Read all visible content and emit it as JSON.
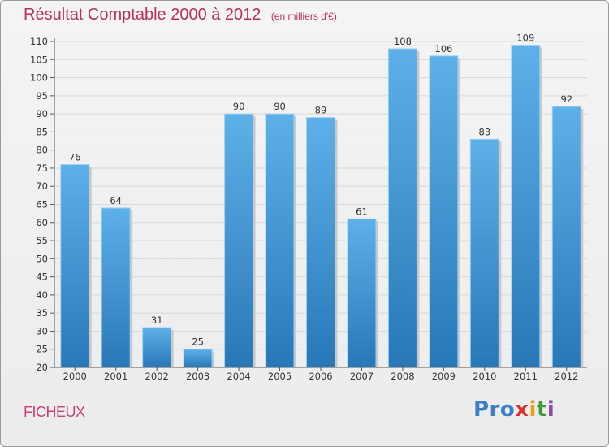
{
  "title": "Résultat Comptable 2000 à 2012",
  "unit_label": "(en milliers d'€)",
  "commune": "FICHEUX",
  "logo": {
    "text": "Proxiti",
    "parts": [
      "Pro",
      "x",
      "i",
      "t",
      "i"
    ]
  },
  "colors": {
    "title": "#b8305a",
    "bar_top": "#5eb0e8",
    "bar_bottom": "#2878b8",
    "grid": "#d8d8d8"
  },
  "chart_data": {
    "type": "bar",
    "title": "Résultat Comptable 2000 à 2012",
    "ylabel": "en milliers d'€",
    "xlabel": "",
    "categories": [
      "2000",
      "2001",
      "2002",
      "2003",
      "2004",
      "2005",
      "2006",
      "2007",
      "2008",
      "2009",
      "2010",
      "2011",
      "2012"
    ],
    "values": [
      76,
      64,
      31,
      25,
      90,
      90,
      89,
      61,
      108,
      106,
      83,
      109,
      92
    ],
    "ylim": [
      20,
      110
    ],
    "yticks": [
      20,
      25,
      30,
      35,
      40,
      45,
      50,
      55,
      60,
      65,
      70,
      75,
      80,
      85,
      90,
      95,
      100,
      105,
      110
    ],
    "grid": true
  }
}
